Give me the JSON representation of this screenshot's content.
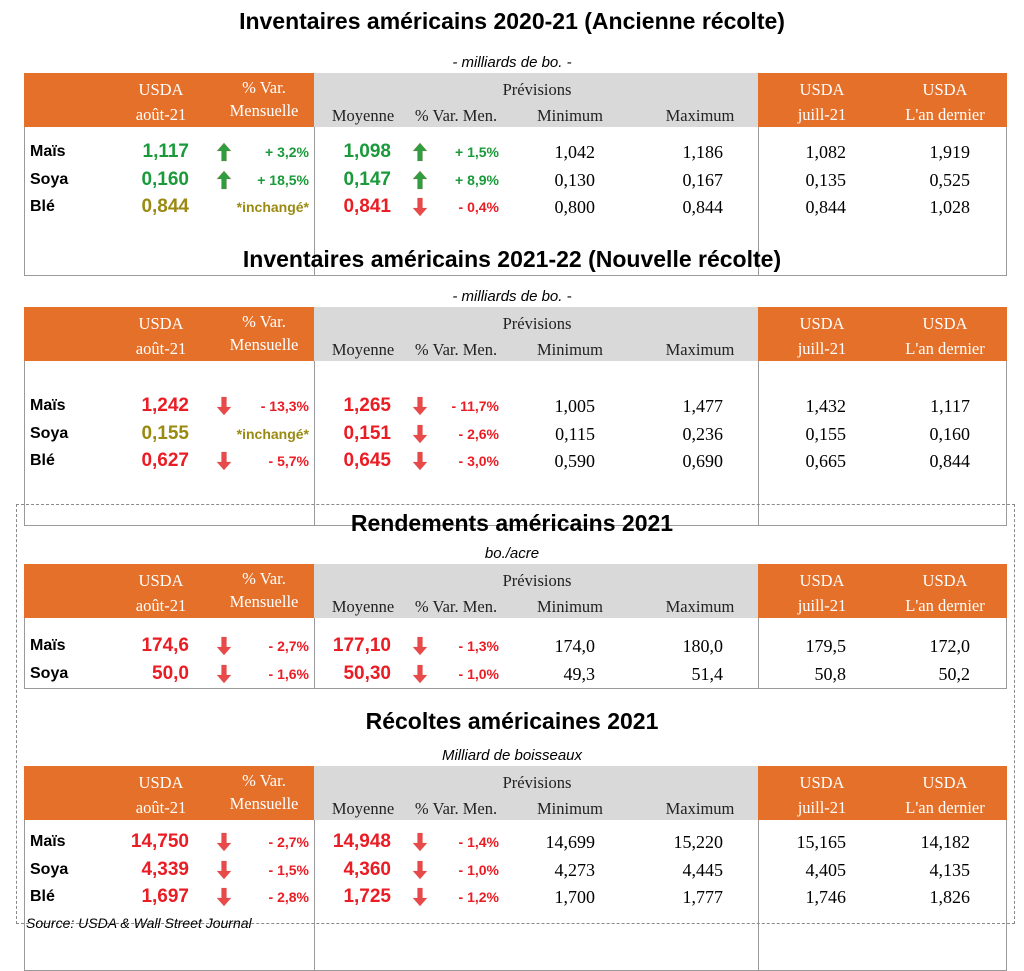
{
  "colors": {
    "orange": "#e5702a",
    "gray_header": "#d9d9d9",
    "green": "#1a9a3a",
    "red": "#ea1c24",
    "olive": "#9a8a12",
    "arrow_green": "#2e9e3e",
    "arrow_red": "#e84a4a"
  },
  "header": {
    "usda": "USDA",
    "aout": "août-21",
    "pct_var": "% Var.",
    "mensuelle": "Mensuelle",
    "previsions": "Prévisions",
    "moyenne": "Moyenne",
    "pct_var_men": "% Var. Men.",
    "minimum": "Minimum",
    "maximum": "Maximum",
    "juill": "juill-21",
    "an_dernier": "L'an dernier"
  },
  "sections": [
    {
      "title": "Inventaires américains 2020-21 (Ancienne récolte)",
      "unit": "- milliards de bo. -",
      "rows": [
        {
          "label": "Maïs",
          "usda": "1,117",
          "usda_color": "green",
          "arrow1": "up",
          "pct1": "+ 3,2%",
          "pct1_color": "green",
          "moy": "1,098",
          "moy_color": "green",
          "arrow2": "up",
          "pct2": "+ 1,5%",
          "pct2_color": "green",
          "min": "1,042",
          "max": "1,186",
          "juill": "1,082",
          "an": "1,919"
        },
        {
          "label": "Soya",
          "usda": "0,160",
          "usda_color": "green",
          "arrow1": "up",
          "pct1": "+ 18,5%",
          "pct1_color": "green",
          "moy": "0,147",
          "moy_color": "green",
          "arrow2": "up",
          "pct2": "+ 8,9%",
          "pct2_color": "green",
          "min": "0,130",
          "max": "0,167",
          "juill": "0,135",
          "an": "0,525"
        },
        {
          "label": "Blé",
          "usda": "0,844",
          "usda_color": "olive",
          "arrow1": "",
          "pct1": "*inchangé*",
          "pct1_color": "olive",
          "moy": "0,841",
          "moy_color": "red",
          "arrow2": "down",
          "pct2": "- 0,4%",
          "pct2_color": "red",
          "min": "0,800",
          "max": "0,844",
          "juill": "0,844",
          "an": "1,028"
        }
      ]
    },
    {
      "title": "Inventaires américains 2021-22 (Nouvelle récolte)",
      "unit": "- milliards de bo. -",
      "rows": [
        {
          "label": "Maïs",
          "usda": "1,242",
          "usda_color": "red",
          "arrow1": "down",
          "pct1": "- 13,3%",
          "pct1_color": "red",
          "moy": "1,265",
          "moy_color": "red",
          "arrow2": "down",
          "pct2": "- 11,7%",
          "pct2_color": "red",
          "min": "1,005",
          "max": "1,477",
          "juill": "1,432",
          "an": "1,117"
        },
        {
          "label": "Soya",
          "usda": "0,155",
          "usda_color": "olive",
          "arrow1": "",
          "pct1": "*inchangé*",
          "pct1_color": "olive",
          "moy": "0,151",
          "moy_color": "red",
          "arrow2": "down",
          "pct2": "- 2,6%",
          "pct2_color": "red",
          "min": "0,115",
          "max": "0,236",
          "juill": "0,155",
          "an": "0,160"
        },
        {
          "label": "Blé",
          "usda": "0,627",
          "usda_color": "red",
          "arrow1": "down",
          "pct1": "- 5,7%",
          "pct1_color": "red",
          "moy": "0,645",
          "moy_color": "red",
          "arrow2": "down",
          "pct2": "- 3,0%",
          "pct2_color": "red",
          "min": "0,590",
          "max": "0,690",
          "juill": "0,665",
          "an": "0,844"
        }
      ]
    },
    {
      "title": "Rendements américains 2021",
      "unit": "bo./acre",
      "rows": [
        {
          "label": "Maïs",
          "usda": "174,6",
          "usda_color": "red",
          "arrow1": "down",
          "pct1": "- 2,7%",
          "pct1_color": "red",
          "moy": "177,10",
          "moy_color": "red",
          "arrow2": "down",
          "pct2": "- 1,3%",
          "pct2_color": "red",
          "min": "174,0",
          "max": "180,0",
          "juill": "179,5",
          "an": "172,0"
        },
        {
          "label": "Soya",
          "usda": "50,0",
          "usda_color": "red",
          "arrow1": "down",
          "pct1": "- 1,6%",
          "pct1_color": "red",
          "moy": "50,30",
          "moy_color": "red",
          "arrow2": "down",
          "pct2": "- 1,0%",
          "pct2_color": "red",
          "min": "49,3",
          "max": "51,4",
          "juill": "50,8",
          "an": "50,2"
        }
      ]
    },
    {
      "title": "Récoltes américaines 2021",
      "unit": "Milliard de boisseaux",
      "rows": [
        {
          "label": "Maïs",
          "usda": "14,750",
          "usda_color": "red",
          "arrow1": "down",
          "pct1": "- 2,7%",
          "pct1_color": "red",
          "moy": "14,948",
          "moy_color": "red",
          "arrow2": "down",
          "pct2": "- 1,4%",
          "pct2_color": "red",
          "min": "14,699",
          "max": "15,220",
          "juill": "15,165",
          "an": "14,182"
        },
        {
          "label": "Soya",
          "usda": "4,339",
          "usda_color": "red",
          "arrow1": "down",
          "pct1": "- 1,5%",
          "pct1_color": "red",
          "moy": "4,360",
          "moy_color": "red",
          "arrow2": "down",
          "pct2": "- 1,0%",
          "pct2_color": "red",
          "min": "4,273",
          "max": "4,445",
          "juill": "4,405",
          "an": "4,135"
        },
        {
          "label": "Blé",
          "usda": "1,697",
          "usda_color": "red",
          "arrow1": "down",
          "pct1": "- 2,8%",
          "pct1_color": "red",
          "moy": "1,725",
          "moy_color": "red",
          "arrow2": "down",
          "pct2": "- 1,2%",
          "pct2_color": "red",
          "min": "1,700",
          "max": "1,777",
          "juill": "1,746",
          "an": "1,826"
        }
      ]
    }
  ],
  "source": "Source: USDA & Wall Street Journal"
}
